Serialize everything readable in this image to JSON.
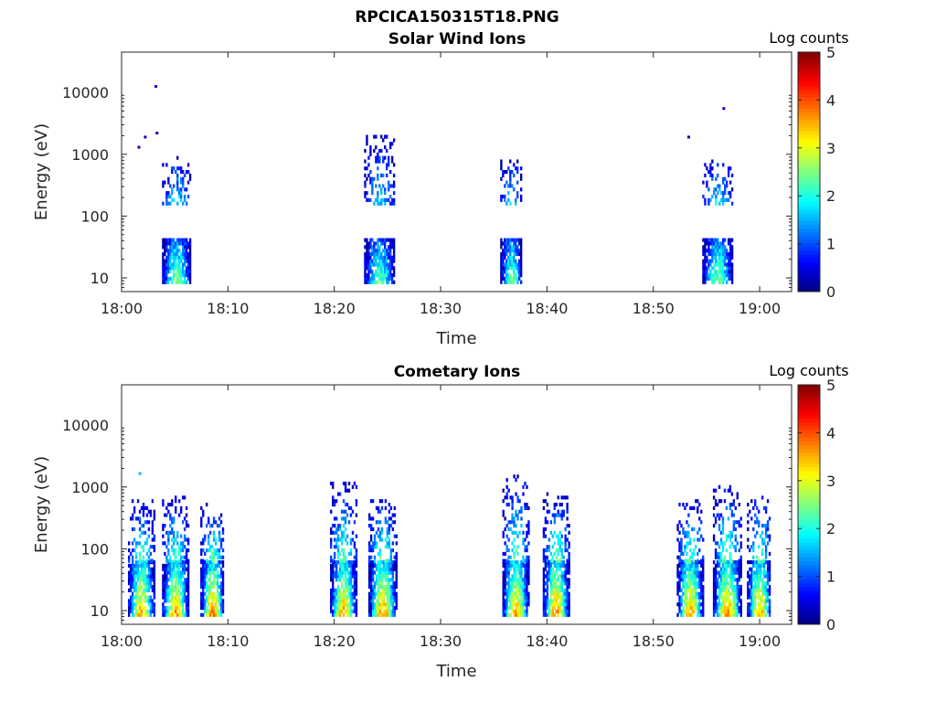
{
  "figure": {
    "title": "RPCICA150315T18.PNG"
  },
  "chart_data": [
    {
      "type": "heatmap",
      "title": "Solar Wind Ions",
      "xlabel": "Time",
      "ylabel": "Energy (eV)",
      "xlim": [
        "18:00",
        "19:03"
      ],
      "x_ticks": [
        "18:00",
        "18:10",
        "18:20",
        "18:30",
        "18:40",
        "18:50",
        "19:00"
      ],
      "y_scale": "log",
      "ylim": [
        6,
        45000
      ],
      "y_ticks": [
        10,
        100,
        1000,
        10000
      ],
      "y_tick_labels": [
        "10",
        "100",
        "1000",
        "10000"
      ],
      "colorbar": {
        "label": "Log counts",
        "range": [
          0,
          5
        ],
        "ticks": [
          "0",
          "1",
          "2",
          "3",
          "4",
          "5"
        ],
        "colormap": "jet"
      },
      "grid": false,
      "bursts": [
        {
          "t0_min": 3.8,
          "t1_min": 6.4,
          "low_band_eV": [
            8,
            40
          ],
          "high_band_eV": [
            150,
            900
          ],
          "peak_log_counts": 2.6
        },
        {
          "t0_min": 22.8,
          "t1_min": 25.6,
          "low_band_eV": [
            8,
            40
          ],
          "high_band_eV": [
            150,
            2000
          ],
          "peak_log_counts": 2.4
        },
        {
          "t0_min": 35.6,
          "t1_min": 37.6,
          "low_band_eV": [
            8,
            40
          ],
          "high_band_eV": [
            150,
            800
          ],
          "peak_log_counts": 2.5
        },
        {
          "t0_min": 54.6,
          "t1_min": 57.4,
          "low_band_eV": [
            8,
            40
          ],
          "high_band_eV": [
            150,
            800
          ],
          "peak_log_counts": 2.5
        }
      ],
      "isolated_points": [
        {
          "t_min": 1.5,
          "energy_eV": 1300,
          "log_counts": 0.3
        },
        {
          "t_min": 2.1,
          "energy_eV": 1900,
          "log_counts": 0.3
        },
        {
          "t_min": 3.1,
          "energy_eV": 12500,
          "log_counts": 0.3
        },
        {
          "t_min": 3.2,
          "energy_eV": 2200,
          "log_counts": 0.3
        },
        {
          "t_min": 53.2,
          "energy_eV": 1900,
          "log_counts": 0.3
        },
        {
          "t_min": 56.5,
          "energy_eV": 5500,
          "log_counts": 0.3
        }
      ]
    },
    {
      "type": "heatmap",
      "title": "Cometary Ions",
      "xlabel": "Time",
      "ylabel": "Energy (eV)",
      "xlim": [
        "18:00",
        "19:03"
      ],
      "x_ticks": [
        "18:00",
        "18:10",
        "18:20",
        "18:30",
        "18:40",
        "18:50",
        "19:00"
      ],
      "y_scale": "log",
      "ylim": [
        6,
        45000
      ],
      "y_ticks": [
        10,
        100,
        1000,
        10000
      ],
      "y_tick_labels": [
        "10",
        "100",
        "1000",
        "10000"
      ],
      "colorbar": {
        "label": "Log counts",
        "range": [
          0,
          5
        ],
        "ticks": [
          "0",
          "1",
          "2",
          "3",
          "4",
          "5"
        ],
        "colormap": "jet"
      },
      "grid": false,
      "bursts": [
        {
          "t0_min": 0.6,
          "t1_min": 3.0,
          "low_band_eV": [
            8,
            60
          ],
          "high_band_eV": [
            60,
            600
          ],
          "peak_log_counts": 3.6
        },
        {
          "t0_min": 3.8,
          "t1_min": 6.2,
          "low_band_eV": [
            8,
            60
          ],
          "high_band_eV": [
            60,
            700
          ],
          "peak_log_counts": 3.6
        },
        {
          "t0_min": 7.4,
          "t1_min": 9.6,
          "low_band_eV": [
            8,
            60
          ],
          "high_band_eV": [
            60,
            500
          ],
          "peak_log_counts": 3.7
        },
        {
          "t0_min": 19.6,
          "t1_min": 22.0,
          "low_band_eV": [
            8,
            60
          ],
          "high_band_eV": [
            60,
            1100
          ],
          "peak_log_counts": 3.6
        },
        {
          "t0_min": 23.2,
          "t1_min": 25.8,
          "low_band_eV": [
            8,
            60
          ],
          "high_band_eV": [
            60,
            600
          ],
          "peak_log_counts": 3.7
        },
        {
          "t0_min": 35.8,
          "t1_min": 38.2,
          "low_band_eV": [
            8,
            60
          ],
          "high_band_eV": [
            60,
            1500
          ],
          "peak_log_counts": 3.6
        },
        {
          "t0_min": 39.6,
          "t1_min": 42.0,
          "low_band_eV": [
            8,
            60
          ],
          "high_band_eV": [
            60,
            800
          ],
          "peak_log_counts": 3.7
        },
        {
          "t0_min": 52.2,
          "t1_min": 54.6,
          "low_band_eV": [
            8,
            60
          ],
          "high_band_eV": [
            60,
            600
          ],
          "peak_log_counts": 3.6
        },
        {
          "t0_min": 55.6,
          "t1_min": 58.2,
          "low_band_eV": [
            8,
            60
          ],
          "high_band_eV": [
            60,
            1000
          ],
          "peak_log_counts": 3.7
        },
        {
          "t0_min": 58.8,
          "t1_min": 61.0,
          "low_band_eV": [
            8,
            60
          ],
          "high_band_eV": [
            60,
            700
          ],
          "peak_log_counts": 3.6
        }
      ],
      "isolated_points": [
        {
          "t_min": 1.6,
          "energy_eV": 1650,
          "log_counts": 1.5
        }
      ]
    }
  ]
}
